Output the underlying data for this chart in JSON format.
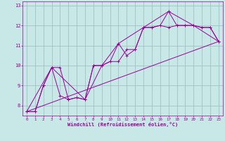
{
  "xlabel": "Windchill (Refroidissement éolien,°C)",
  "bg_color": "#c8e8e8",
  "line_color": "#990099",
  "grid_color": "#99bbbb",
  "xlim": [
    -0.5,
    23.5
  ],
  "ylim": [
    7.5,
    13.2
  ],
  "xticks": [
    0,
    1,
    2,
    3,
    4,
    5,
    6,
    7,
    8,
    9,
    10,
    11,
    12,
    13,
    14,
    15,
    16,
    17,
    18,
    19,
    20,
    21,
    22,
    23
  ],
  "yticks": [
    8,
    9,
    10,
    11,
    12,
    13
  ],
  "series1": [
    [
      0,
      7.7
    ],
    [
      1,
      7.7
    ],
    [
      2,
      9.0
    ],
    [
      3,
      9.9
    ],
    [
      4,
      9.9
    ],
    [
      5,
      8.3
    ],
    [
      6,
      8.4
    ],
    [
      7,
      8.3
    ],
    [
      8,
      10.0
    ],
    [
      9,
      10.0
    ],
    [
      10,
      10.2
    ],
    [
      11,
      11.1
    ],
    [
      12,
      10.5
    ],
    [
      13,
      10.8
    ],
    [
      14,
      11.9
    ],
    [
      15,
      11.9
    ],
    [
      16,
      12.0
    ],
    [
      17,
      11.9
    ],
    [
      18,
      12.0
    ],
    [
      19,
      12.0
    ],
    [
      20,
      12.0
    ],
    [
      21,
      11.9
    ],
    [
      22,
      11.9
    ],
    [
      23,
      11.2
    ]
  ],
  "series2": [
    [
      0,
      7.7
    ],
    [
      1,
      7.7
    ],
    [
      2,
      9.0
    ],
    [
      3,
      9.9
    ],
    [
      4,
      8.5
    ],
    [
      5,
      8.3
    ],
    [
      6,
      8.4
    ],
    [
      7,
      8.3
    ],
    [
      8,
      10.0
    ],
    [
      9,
      10.0
    ],
    [
      10,
      10.2
    ],
    [
      11,
      10.2
    ],
    [
      12,
      10.8
    ],
    [
      13,
      10.8
    ],
    [
      14,
      11.9
    ],
    [
      15,
      11.9
    ],
    [
      16,
      12.0
    ],
    [
      17,
      12.7
    ],
    [
      18,
      12.0
    ],
    [
      19,
      12.0
    ],
    [
      20,
      12.0
    ],
    [
      21,
      11.9
    ],
    [
      22,
      11.9
    ],
    [
      23,
      11.2
    ]
  ],
  "series3": [
    [
      0,
      7.7
    ],
    [
      3,
      9.9
    ],
    [
      7,
      8.3
    ],
    [
      9,
      10.0
    ],
    [
      11,
      11.1
    ],
    [
      14,
      11.9
    ],
    [
      17,
      12.7
    ],
    [
      20,
      12.0
    ],
    [
      23,
      11.2
    ]
  ],
  "series4": [
    [
      0,
      7.7
    ],
    [
      23,
      11.2
    ]
  ]
}
